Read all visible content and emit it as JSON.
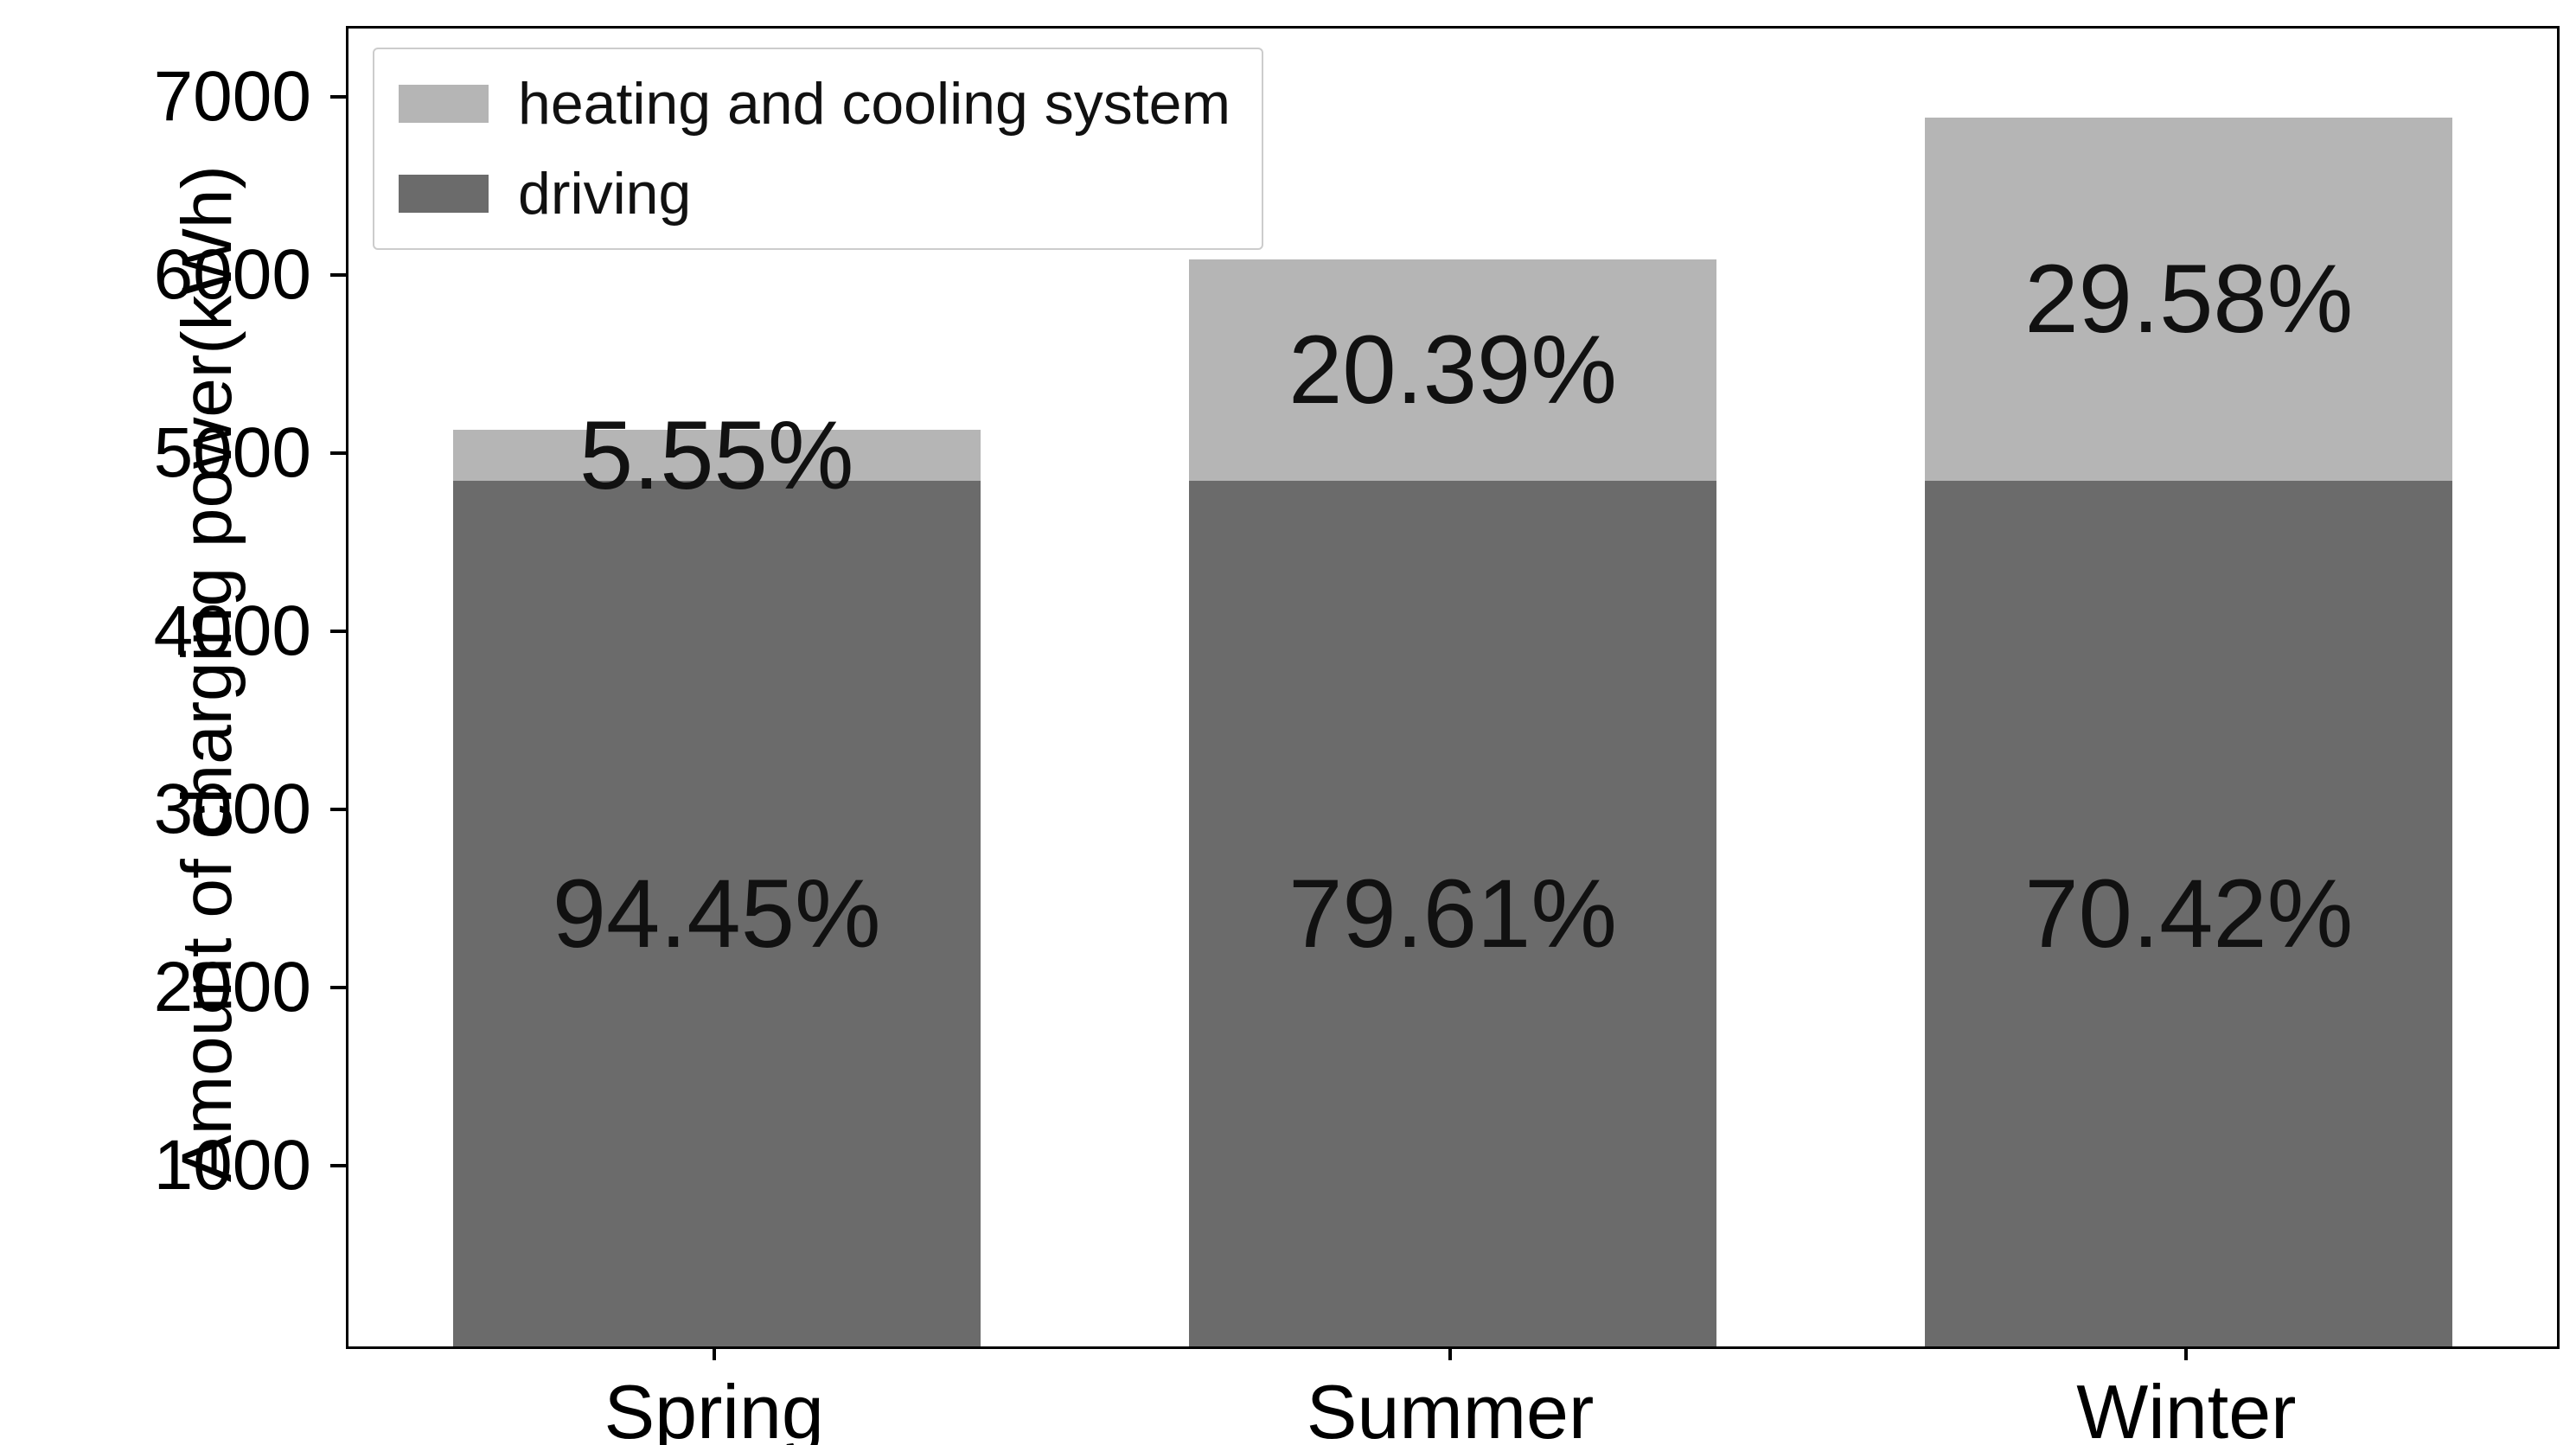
{
  "chart_data": {
    "type": "bar",
    "stacked": true,
    "title": "",
    "xlabel": "",
    "ylabel": "Amount of charging power(kWh)",
    "ylim": [
      0,
      7400
    ],
    "yticks": [
      1000,
      2000,
      3000,
      4000,
      5000,
      6000,
      7000
    ],
    "grid": false,
    "legend_position": "upper left",
    "categories": [
      "Spring",
      "Summer",
      "Winter"
    ],
    "series": [
      {
        "name": "driving",
        "color": "#6b6b6b",
        "values": [
          4860,
          4860,
          4860
        ],
        "labels": [
          "94.45%",
          "79.61%",
          "70.42%"
        ]
      },
      {
        "name": "heating and cooling system",
        "color": "#b5b5b5",
        "values": [
          286,
          1245,
          2041
        ],
        "labels": [
          "5.55%",
          "20.39%",
          "29.58%"
        ]
      }
    ],
    "totals": [
      5146,
      6105,
      6901
    ],
    "legend_order": [
      "heating and cooling system",
      "driving"
    ]
  }
}
